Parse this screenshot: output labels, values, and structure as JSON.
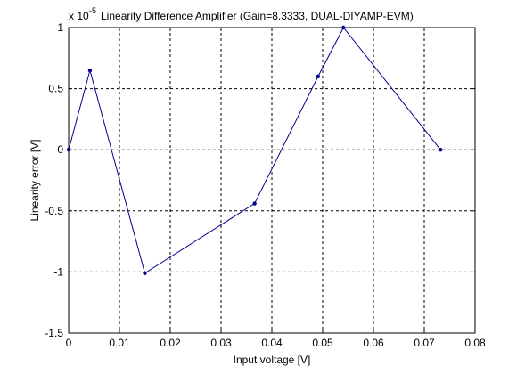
{
  "chart_data": {
    "type": "line",
    "title": "Linearity Difference Amplifier (Gain=8.3333, DUAL-DIYAMP-EVM)",
    "xlabel": "Input voltage [V]",
    "ylabel": "Linearity error [V]",
    "exponent": {
      "base": "x 10",
      "power": "-5"
    },
    "xlim": [
      0,
      0.08
    ],
    "ylim": [
      -1.5,
      1
    ],
    "xticks": [
      0,
      0.01,
      0.02,
      0.03,
      0.04,
      0.05,
      0.06,
      0.07,
      0.08
    ],
    "xtick_labels": [
      "0",
      "0.01",
      "0.02",
      "0.03",
      "0.04",
      "0.05",
      "0.06",
      "0.07",
      "0.08"
    ],
    "yticks": [
      -1.5,
      -1,
      -0.5,
      0,
      0.5,
      1
    ],
    "ytick_labels": [
      "-1.5",
      "-1",
      "-0.5",
      "0",
      "0.5",
      "1"
    ],
    "grid": true,
    "line_color": "#00008b",
    "series": [
      {
        "x": [
          0,
          0.0042,
          0.015,
          0.0366,
          0.0491,
          0.0541,
          0.0732
        ],
        "values": [
          0,
          0.65,
          -1.01,
          -0.44,
          0.6,
          1.0,
          0
        ]
      }
    ]
  }
}
